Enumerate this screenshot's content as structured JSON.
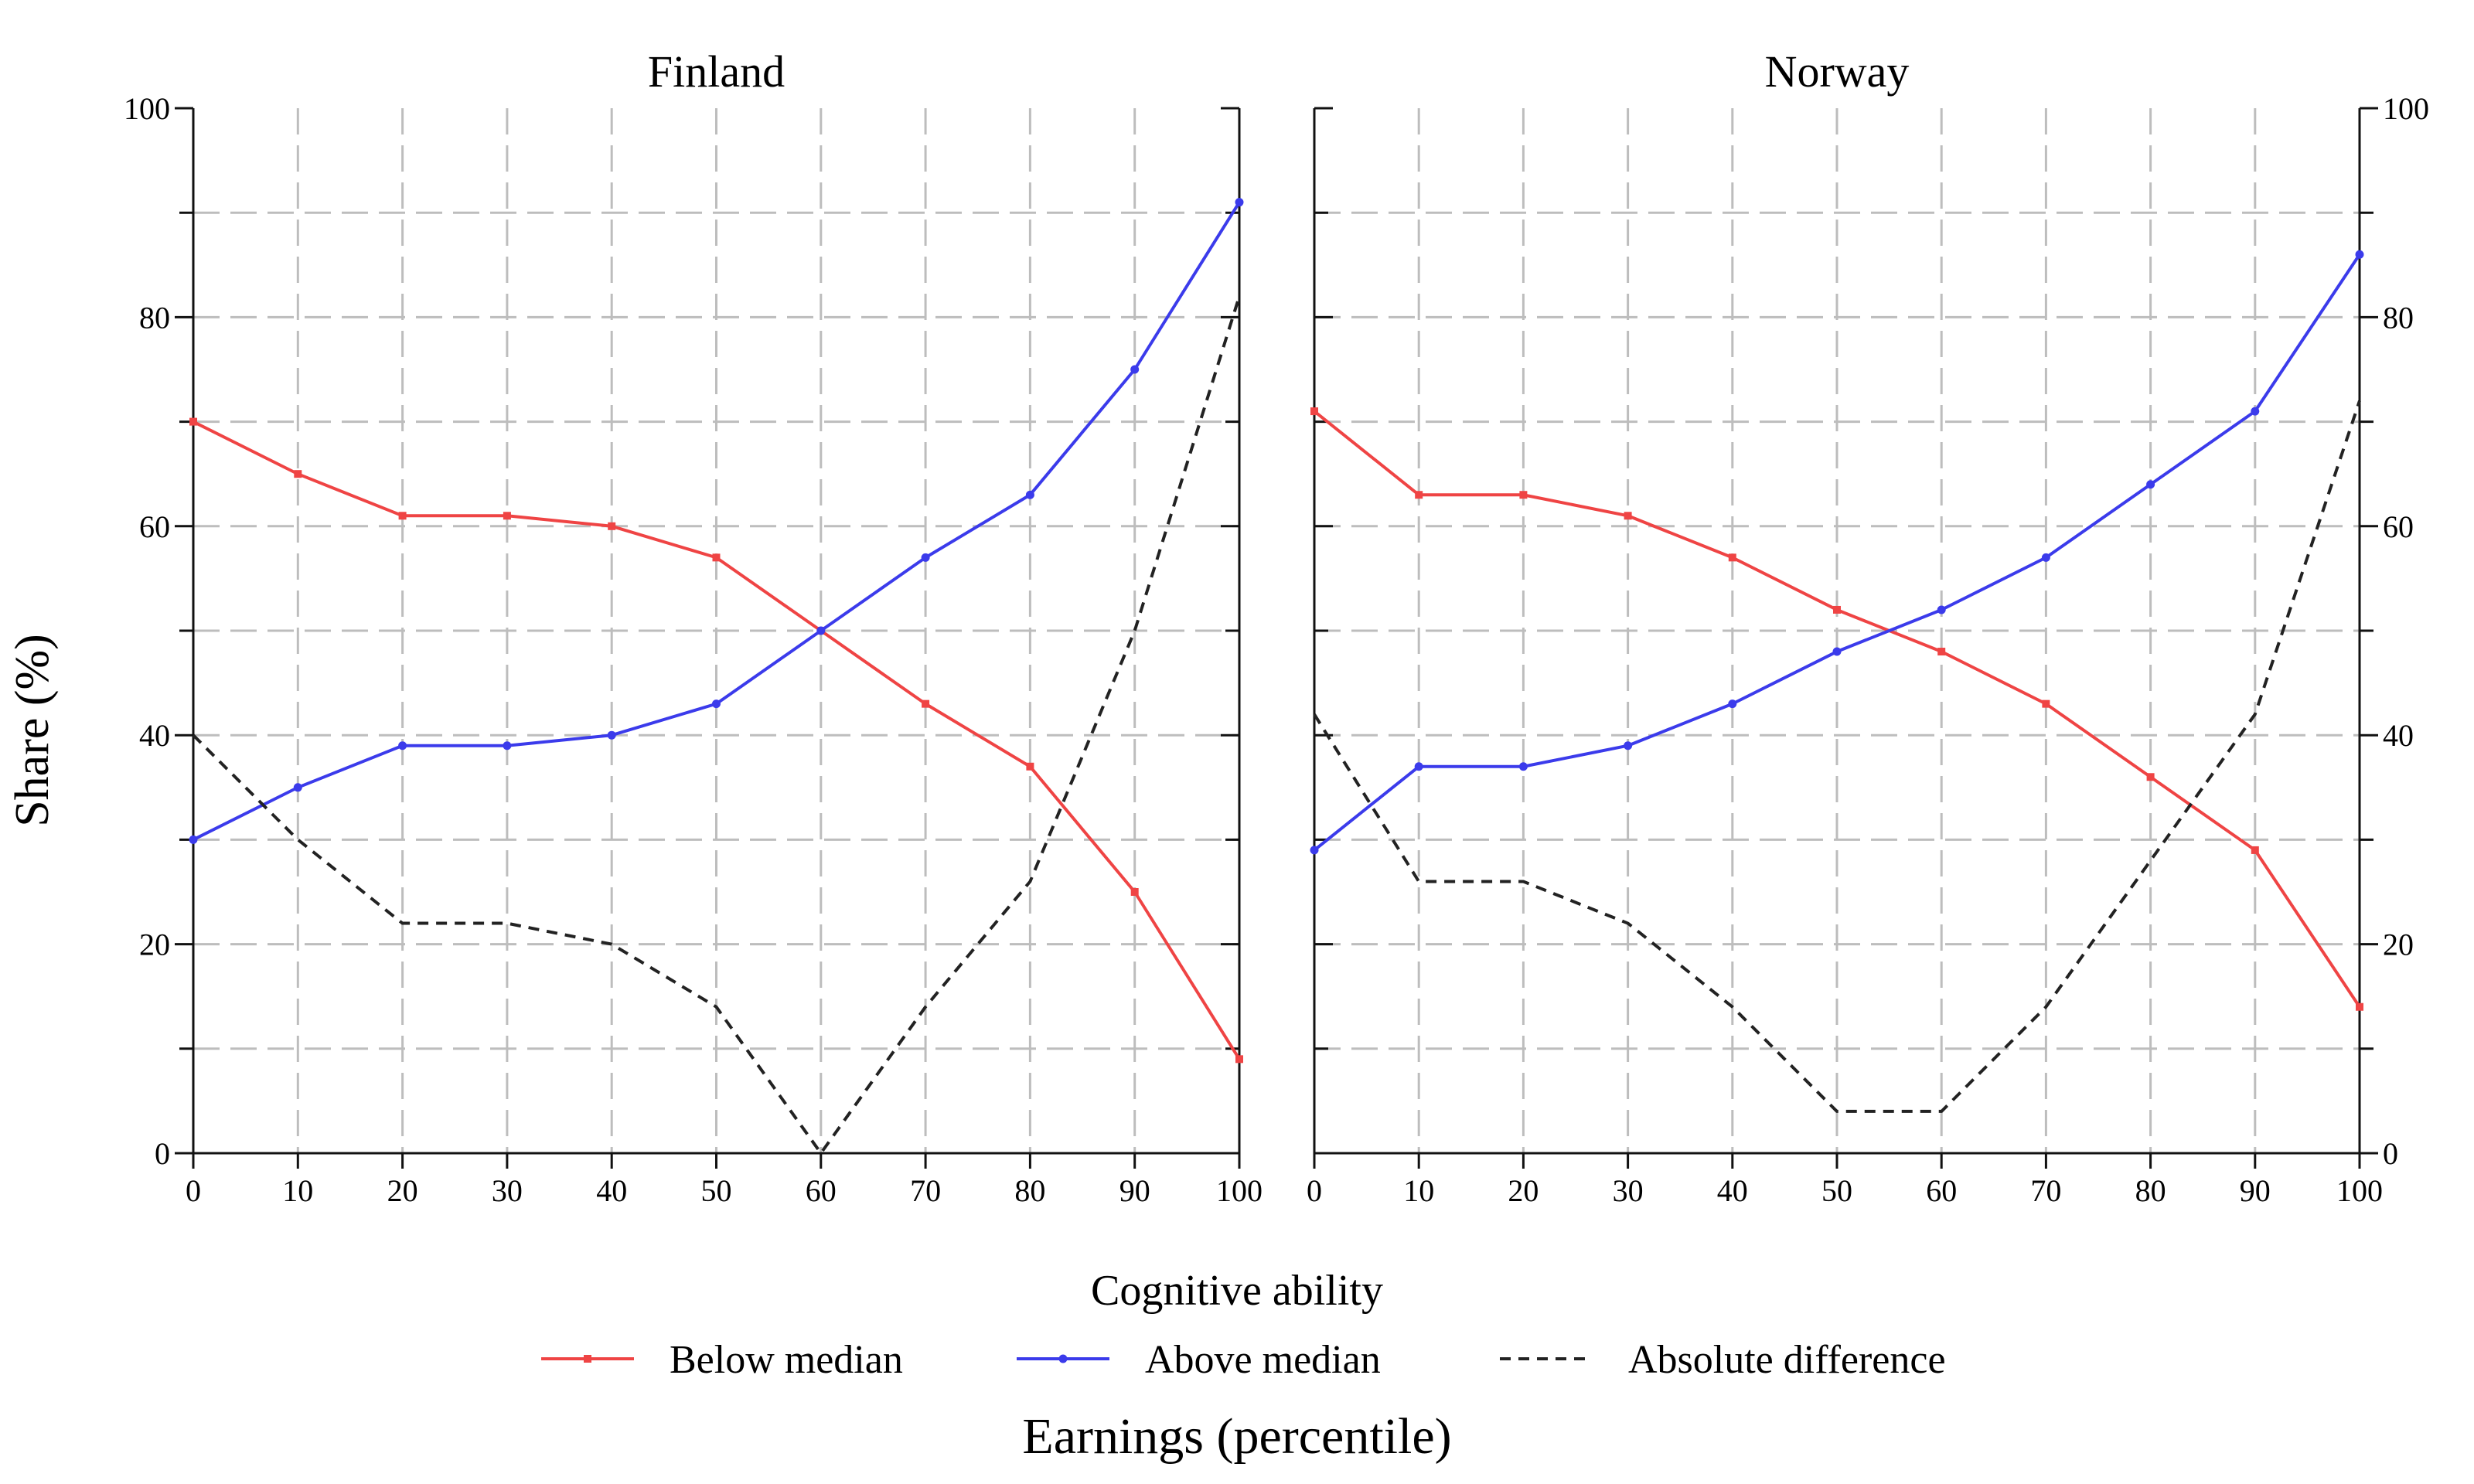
{
  "colors": {
    "below": "#ef4444",
    "above": "#3b3beb",
    "diff": "#222222",
    "grid": "#bdbdbd"
  },
  "labels": {
    "ylabel": "Share (%)",
    "xlabel": "Earnings (percentile)",
    "legend_title": "Cognitive ability"
  },
  "legend": [
    {
      "key": "below",
      "label": "Below median",
      "style": "solid-square"
    },
    {
      "key": "above",
      "label": "Above median",
      "style": "solid-dot"
    },
    {
      "key": "diff",
      "label": "Absolute difference",
      "style": "dashed"
    }
  ],
  "chart_data": [
    {
      "type": "line",
      "title": "Finland",
      "xlim": [
        0,
        100
      ],
      "ylim": [
        0,
        100
      ],
      "xticks": [
        0,
        10,
        20,
        30,
        40,
        50,
        60,
        70,
        80,
        90,
        100
      ],
      "yticks": [
        0,
        20,
        40,
        60,
        80,
        100
      ],
      "y_axis_side": "left",
      "grid": true,
      "x": [
        0,
        10,
        20,
        30,
        40,
        50,
        60,
        70,
        80,
        90,
        100
      ],
      "series": [
        {
          "name": "Below median",
          "key": "below",
          "values": [
            70,
            65,
            61,
            61,
            60,
            57,
            50,
            43,
            37,
            25,
            9
          ]
        },
        {
          "name": "Above median",
          "key": "above",
          "values": [
            30,
            35,
            39,
            39,
            40,
            43,
            50,
            57,
            63,
            75,
            91
          ]
        },
        {
          "name": "Absolute difference",
          "key": "diff",
          "values": [
            40,
            30,
            22,
            22,
            20,
            14,
            0,
            14,
            26,
            50,
            82
          ]
        }
      ]
    },
    {
      "type": "line",
      "title": "Norway",
      "xlim": [
        0,
        100
      ],
      "ylim": [
        0,
        100
      ],
      "xticks": [
        0,
        10,
        20,
        30,
        40,
        50,
        60,
        70,
        80,
        90,
        100
      ],
      "yticks": [
        0,
        20,
        40,
        60,
        80,
        100
      ],
      "y_axis_side": "right",
      "grid": true,
      "x": [
        0,
        10,
        20,
        30,
        40,
        50,
        60,
        70,
        80,
        90,
        100
      ],
      "series": [
        {
          "name": "Below median",
          "key": "below",
          "values": [
            71,
            63,
            63,
            61,
            57,
            52,
            48,
            43,
            36,
            29,
            14
          ]
        },
        {
          "name": "Above median",
          "key": "above",
          "values": [
            29,
            37,
            37,
            39,
            43,
            48,
            52,
            57,
            64,
            71,
            86
          ]
        },
        {
          "name": "Absolute difference",
          "key": "diff",
          "values": [
            42,
            26,
            26,
            22,
            14,
            4,
            4,
            14,
            28,
            42,
            72
          ]
        }
      ]
    }
  ]
}
